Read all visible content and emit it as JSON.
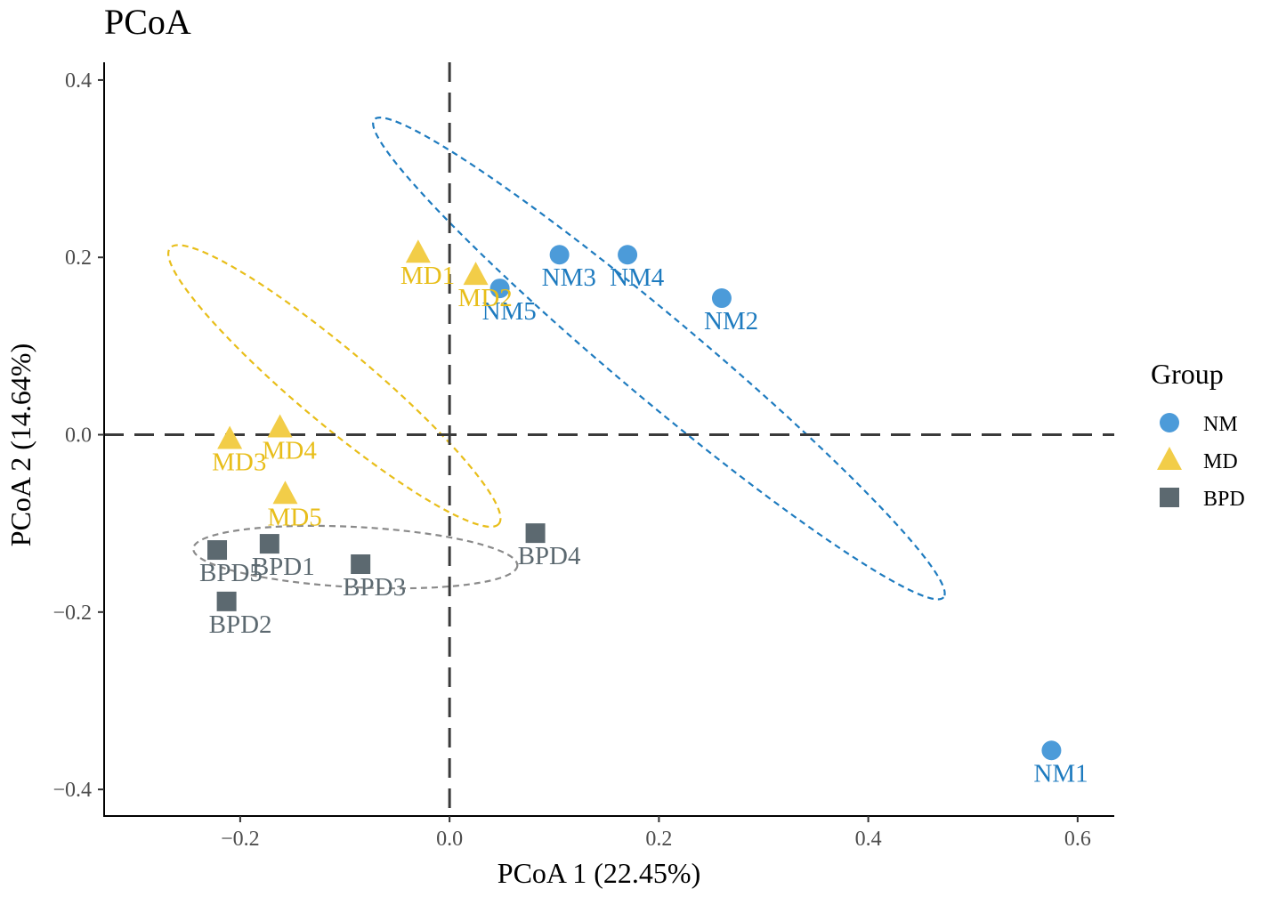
{
  "chart_data": {
    "type": "scatter",
    "title": "PCoA",
    "xlabel": "PCoA 1 (22.45%)",
    "ylabel": "PCoA 2 (14.64%)",
    "xlim": [
      -0.33,
      0.635
    ],
    "ylim": [
      -0.43,
      0.42
    ],
    "xticks": [
      -0.2,
      0.0,
      0.2,
      0.4,
      0.6
    ],
    "xtick_labels": [
      "−0.2",
      "0.0",
      "0.2",
      "0.4",
      "0.6"
    ],
    "yticks": [
      -0.4,
      -0.2,
      0.0,
      0.2,
      0.4
    ],
    "ytick_labels": [
      "−0.4",
      "−0.2",
      "0.0",
      "0.2",
      "0.4"
    ],
    "reference_lines": {
      "x": 0,
      "y": 0,
      "style": "dashed"
    },
    "grid": false,
    "legend": {
      "title": "Group",
      "position": "right",
      "entries": [
        {
          "name": "NM",
          "shape": "circle",
          "color": "#4C9BD9"
        },
        {
          "name": "MD",
          "shape": "triangle",
          "color": "#F2CD48"
        },
        {
          "name": "BPD",
          "shape": "square",
          "color": "#5C6970"
        }
      ]
    },
    "label_colors": {
      "NM": "#1E7BBF",
      "MD": "#E8BE1A",
      "BPD": "#5C6970"
    },
    "ellipse_colors": {
      "NM": "#1E7BBF",
      "MD": "#E8BE1A",
      "BPD": "#8A8A8A"
    },
    "series": [
      {
        "name": "NM",
        "points": [
          {
            "label": "NM1",
            "x": 0.575,
            "y": -0.356
          },
          {
            "label": "NM2",
            "x": 0.26,
            "y": 0.154
          },
          {
            "label": "NM3",
            "x": 0.105,
            "y": 0.203
          },
          {
            "label": "NM4",
            "x": 0.17,
            "y": 0.203
          },
          {
            "label": "NM5",
            "x": 0.048,
            "y": 0.165
          }
        ],
        "ellipse": {
          "cx": 0.2,
          "cy": 0.086,
          "rx": 0.355,
          "ry": 0.046,
          "angle_deg": 40
        }
      },
      {
        "name": "MD",
        "points": [
          {
            "label": "MD1",
            "x": -0.03,
            "y": 0.205
          },
          {
            "label": "MD2",
            "x": 0.025,
            "y": 0.18
          },
          {
            "label": "MD3",
            "x": -0.21,
            "y": -0.005
          },
          {
            "label": "MD4",
            "x": -0.162,
            "y": 0.008
          },
          {
            "label": "MD5",
            "x": -0.157,
            "y": -0.067
          }
        ],
        "ellipse": {
          "cx": -0.11,
          "cy": 0.055,
          "rx": 0.205,
          "ry": 0.042,
          "angle_deg": 40
        }
      },
      {
        "name": "BPD",
        "points": [
          {
            "label": "BPD1",
            "x": -0.172,
            "y": -0.123
          },
          {
            "label": "BPD2",
            "x": -0.213,
            "y": -0.188
          },
          {
            "label": "BPD3",
            "x": -0.085,
            "y": -0.146
          },
          {
            "label": "BPD4",
            "x": 0.082,
            "y": -0.111
          },
          {
            "label": "BPD5",
            "x": -0.222,
            "y": -0.13
          }
        ],
        "ellipse": {
          "cx": -0.09,
          "cy": -0.138,
          "rx": 0.155,
          "ry": 0.034,
          "angle_deg": 3
        }
      }
    ]
  }
}
